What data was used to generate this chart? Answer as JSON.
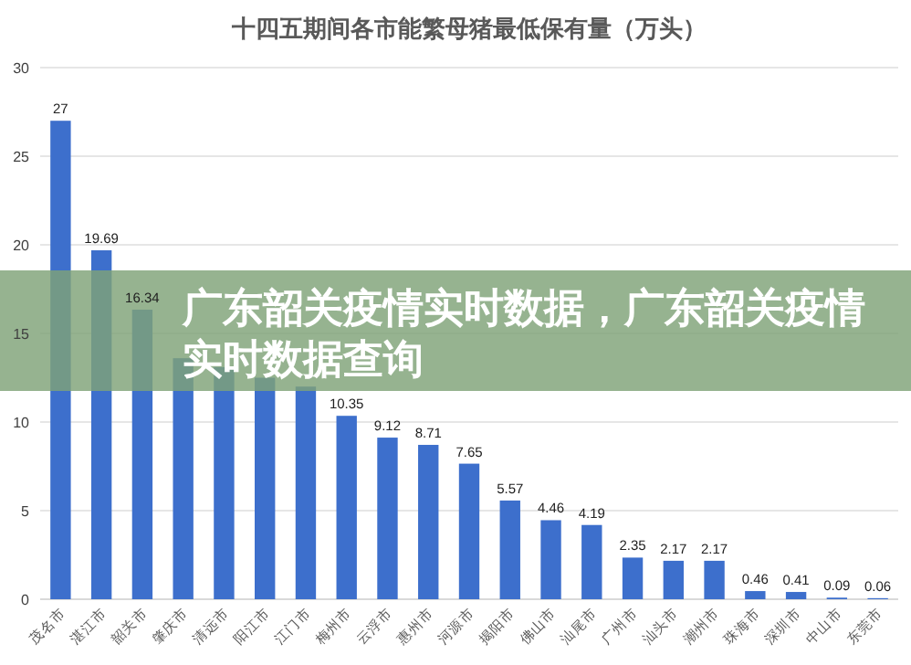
{
  "chart_data": {
    "type": "bar",
    "title": "十四五期间各市能繁母猪最低保有量（万头）",
    "categories": [
      "茂名市",
      "湛江市",
      "韶关市",
      "肇庆市",
      "清远市",
      "阳江市",
      "江门市",
      "梅州市",
      "云浮市",
      "惠州市",
      "河源市",
      "揭阳市",
      "佛山市",
      "汕尾市",
      "广州市",
      "汕头市",
      "潮州市",
      "珠海市",
      "深圳市",
      "中山市",
      "东莞市"
    ],
    "values": [
      27,
      19.69,
      16.34,
      13.6,
      13.1,
      12.5,
      12.0,
      10.35,
      9.12,
      8.71,
      7.65,
      5.57,
      4.46,
      4.19,
      2.35,
      2.17,
      2.17,
      0.46,
      0.41,
      0.09,
      0.06
    ],
    "value_labels": [
      "27",
      "19.69",
      "16.34",
      null,
      null,
      null,
      null,
      "10.35",
      "9.12",
      "8.71",
      "7.65",
      "5.57",
      "4.46",
      "4.19",
      "2.35",
      "2.17",
      "2.17",
      "0.46",
      "0.41",
      "0.09",
      "0.06"
    ],
    "color": "#3d6fcc",
    "ylim": [
      0,
      30
    ],
    "yticks": [
      0,
      5,
      10,
      15,
      20,
      25,
      30
    ],
    "grid": "y",
    "annotations": [
      "广东韶关疫情实时数据，广东韶关疫情实时数据查询"
    ]
  }
}
